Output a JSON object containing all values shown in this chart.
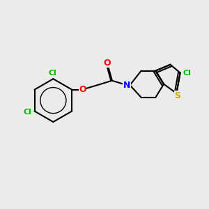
{
  "bg_color": "#ebebeb",
  "bond_color": "#000000",
  "atom_colors": {
    "Cl": "#00bb00",
    "O_carbonyl": "#ff0000",
    "O_ether": "#ff0000",
    "N": "#0000ff",
    "S": "#ccaa00"
  },
  "figsize": [
    3.0,
    3.0
  ],
  "dpi": 100
}
